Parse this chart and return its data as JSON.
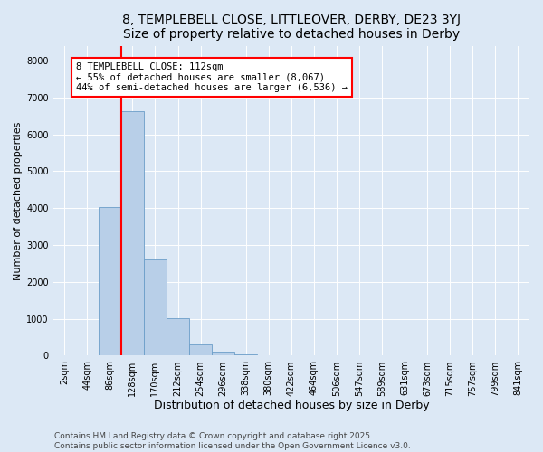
{
  "title1": "8, TEMPLEBELL CLOSE, LITTLEOVER, DERBY, DE23 3YJ",
  "title2": "Size of property relative to detached houses in Derby",
  "xlabel": "Distribution of detached houses by size in Derby",
  "ylabel": "Number of detached properties",
  "categories": [
    "2sqm",
    "44sqm",
    "86sqm",
    "128sqm",
    "170sqm",
    "212sqm",
    "254sqm",
    "296sqm",
    "338sqm",
    "380sqm",
    "422sqm",
    "464sqm",
    "506sqm",
    "547sqm",
    "589sqm",
    "631sqm",
    "673sqm",
    "715sqm",
    "757sqm",
    "799sqm",
    "841sqm"
  ],
  "values": [
    0,
    5,
    4020,
    6620,
    2620,
    1010,
    295,
    110,
    48,
    8,
    0,
    0,
    0,
    0,
    0,
    0,
    0,
    0,
    0,
    0,
    0
  ],
  "bar_color": "#b8cfe8",
  "bar_edge_color": "#6b9ec8",
  "vline_x_index": 2.5,
  "vline_color": "red",
  "annotation_text": "8 TEMPLEBELL CLOSE: 112sqm\n← 55% of detached houses are smaller (8,067)\n44% of semi-detached houses are larger (6,536) →",
  "annotation_box_color": "white",
  "annotation_box_edge_color": "red",
  "ylim": [
    0,
    8400
  ],
  "yticks": [
    0,
    1000,
    2000,
    3000,
    4000,
    5000,
    6000,
    7000,
    8000
  ],
  "background_color": "#dce8f5",
  "plot_bg_color": "#dce8f5",
  "footer_line1": "Contains HM Land Registry data © Crown copyright and database right 2025.",
  "footer_line2": "Contains public sector information licensed under the Open Government Licence v3.0.",
  "title1_fontsize": 10,
  "title2_fontsize": 9,
  "xlabel_fontsize": 9,
  "ylabel_fontsize": 8,
  "tick_fontsize": 7,
  "annotation_fontsize": 7.5,
  "footer_fontsize": 6.5
}
